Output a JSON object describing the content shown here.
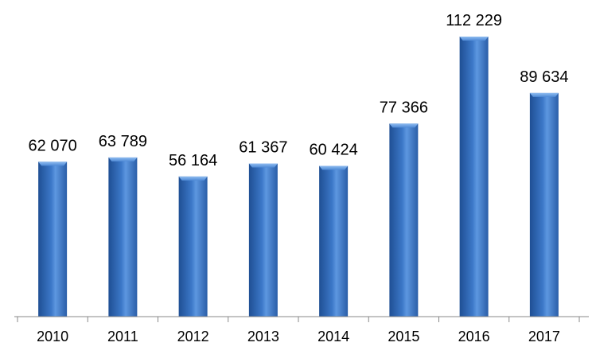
{
  "chart_data": {
    "type": "bar",
    "categories": [
      "2010",
      "2011",
      "2012",
      "2013",
      "2014",
      "2015",
      "2016",
      "2017"
    ],
    "values": [
      62070,
      63789,
      56164,
      61367,
      60424,
      77366,
      112229,
      89634
    ],
    "value_labels": [
      "62 070",
      "63 789",
      "56 164",
      "61 367",
      "60 424",
      "77 366",
      "112 229",
      "89 634"
    ],
    "color": "#3c78c8"
  }
}
